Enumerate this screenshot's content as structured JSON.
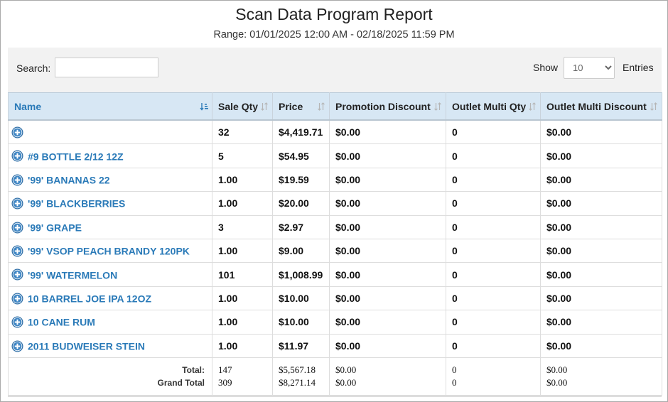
{
  "header": {
    "title": "Scan Data Program Report",
    "range": "Range: 01/01/2025 12:00 AM - 02/18/2025 11:59 PM"
  },
  "controls": {
    "search_label": "Search:",
    "show_label": "Show",
    "page_size": "10",
    "entries_label": "Entries"
  },
  "table": {
    "columns": [
      "Name",
      "Sale Qty",
      "Price",
      "Promotion Discount",
      "Outlet Multi Qty",
      "Outlet Multi Discount"
    ],
    "rows": [
      [
        null,
        "32",
        "$4,419.71",
        "$0.00",
        "0",
        "$0.00"
      ],
      [
        "#9 BOTTLE 2/12 12Z",
        "5",
        "$54.95",
        "$0.00",
        "0",
        "$0.00"
      ],
      [
        "'99' BANANAS 22",
        "1.00",
        "$19.59",
        "$0.00",
        "0",
        "$0.00"
      ],
      [
        "'99' BLACKBERRIES",
        "1.00",
        "$20.00",
        "$0.00",
        "0",
        "$0.00"
      ],
      [
        "'99' GRAPE",
        "3",
        "$2.97",
        "$0.00",
        "0",
        "$0.00"
      ],
      [
        "'99' VSOP PEACH BRANDY 120PK",
        "1.00",
        "$9.00",
        "$0.00",
        "0",
        "$0.00"
      ],
      [
        "'99' WATERMELON",
        "101",
        "$1,008.99",
        "$0.00",
        "0",
        "$0.00"
      ],
      [
        "10 BARREL JOE IPA 12OZ",
        "1.00",
        "$10.00",
        "$0.00",
        "0",
        "$0.00"
      ],
      [
        "10 CANE RUM",
        "1.00",
        "$10.00",
        "$0.00",
        "0",
        "$0.00"
      ],
      [
        "2011 BUDWEISER STEIN",
        "1.00",
        "$11.97",
        "$0.00",
        "0",
        "$0.00"
      ]
    ],
    "totals": [
      {
        "label": "Total:",
        "values": [
          "147",
          "$5,567.18",
          "$0.00",
          "0",
          "$0.00"
        ]
      },
      {
        "label": "Grand Total",
        "values": [
          "309",
          "$8,271.14",
          "$0.00",
          "0",
          "$0.00"
        ]
      }
    ]
  }
}
